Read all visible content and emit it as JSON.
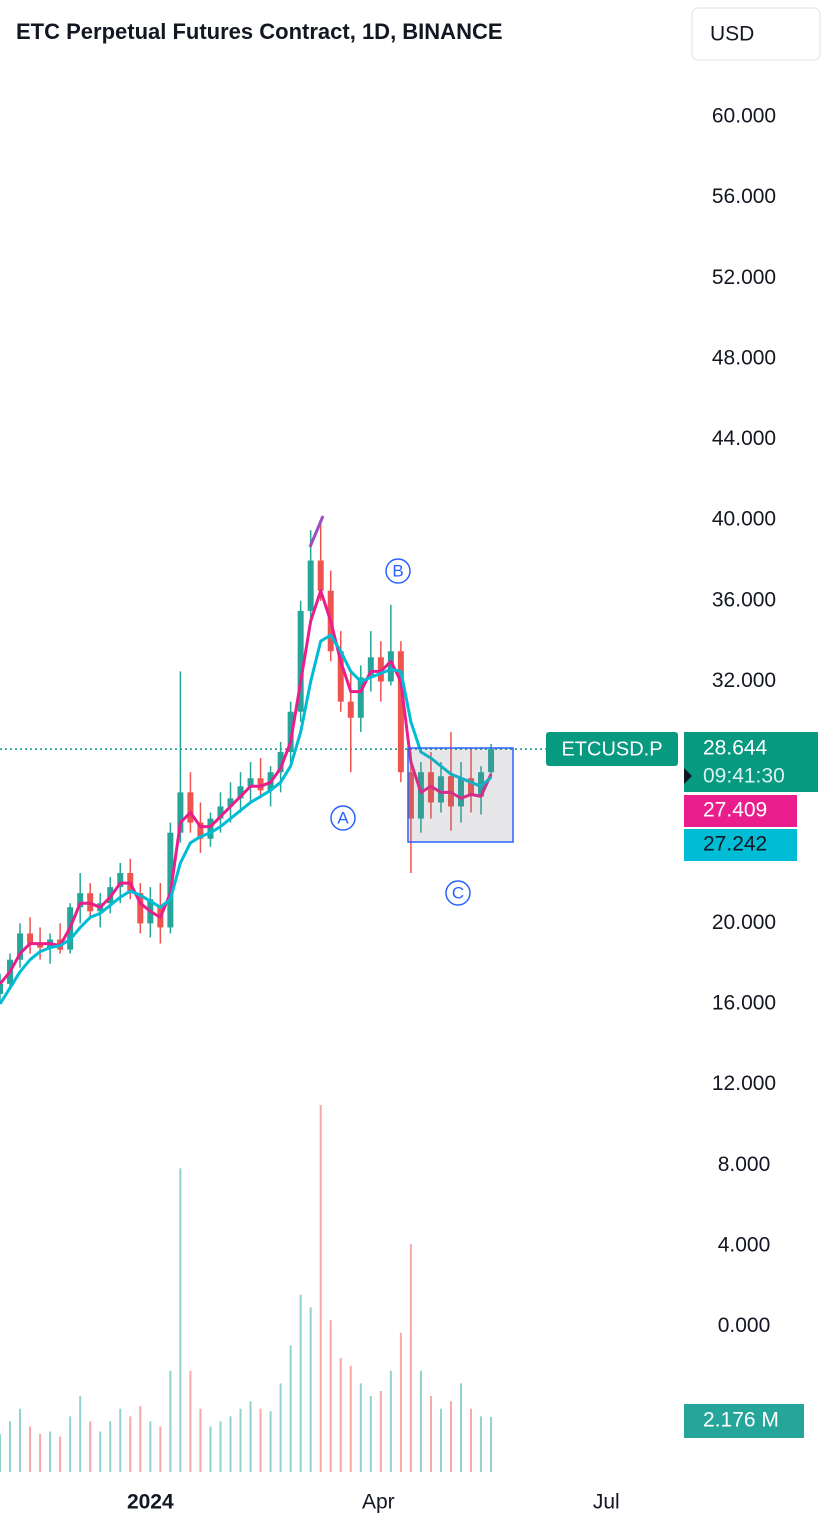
{
  "chart_data": {
    "type": "candlestick",
    "title": "ETC Perpetual Futures Contract, 1D, BINANCE",
    "currency": "USD",
    "symbol": "ETCUSD.P",
    "countdown": "09:41:30",
    "annotations": [
      "A",
      "B",
      "C"
    ],
    "up_color": "#26a69a",
    "down_color": "#ef5350",
    "x": [
      -60,
      -56,
      -52,
      -48,
      -44,
      -40,
      -36,
      -32,
      -28,
      -24,
      -20,
      -16,
      -12,
      -8,
      -4,
      0,
      4,
      8,
      12,
      16,
      20,
      24,
      28,
      32,
      36,
      40,
      44,
      48,
      52,
      56,
      60,
      64,
      68,
      72,
      76,
      80,
      84,
      88,
      92,
      96,
      100,
      104,
      108,
      112,
      116,
      120,
      124,
      128,
      132,
      136
    ],
    "open": [
      16.5,
      17,
      18.2,
      19.5,
      19,
      18.8,
      19.2,
      18.7,
      20.8,
      21.5,
      20.6,
      21,
      21.8,
      22.5,
      21.5,
      20,
      20.8,
      19.8,
      24.5,
      26.5,
      25,
      24.2,
      25.2,
      25.8,
      26.2,
      26.8,
      27.2,
      26.6,
      27.5,
      28.5,
      30.5,
      35.5,
      38,
      36.5,
      33.5,
      31,
      30.2,
      32.2,
      33.2,
      32,
      33.5,
      27.5,
      25.2,
      27.5,
      26,
      27.3,
      25.8,
      27.2,
      26.3,
      27.5
    ],
    "high": [
      17.5,
      18.5,
      20,
      20.3,
      19.8,
      19.5,
      20,
      21,
      22.5,
      22,
      21.5,
      22.3,
      23,
      23.2,
      22,
      21.8,
      22,
      25,
      32.5,
      27.5,
      26,
      25.5,
      26.5,
      27,
      27.5,
      28,
      28.2,
      27.8,
      29,
      31,
      36,
      39.5,
      40,
      37.5,
      34.5,
      32.5,
      32.8,
      34.5,
      34,
      35.8,
      34,
      28.5,
      28,
      28.5,
      28,
      29.5,
      28,
      28.6,
      27.8,
      28.9
    ],
    "low": [
      16,
      16.8,
      17.8,
      18.5,
      18.2,
      18,
      18.5,
      18.5,
      20,
      20.2,
      19.8,
      20.5,
      21,
      21.2,
      19.5,
      19.3,
      19,
      19.5,
      24,
      24.5,
      23.5,
      23.8,
      24.5,
      25,
      25.5,
      26,
      26.2,
      25.8,
      26.5,
      27.8,
      30,
      35,
      36,
      33,
      30.5,
      27.5,
      29.5,
      31.5,
      31,
      31.8,
      27,
      22.5,
      24.5,
      25.2,
      25.5,
      24.6,
      25,
      25.5,
      25.4,
      27.2
    ],
    "close": [
      17,
      18.2,
      19.5,
      19,
      18.8,
      19.2,
      18.7,
      20.8,
      21.5,
      20.6,
      21,
      21.8,
      22.5,
      21.5,
      20,
      21.2,
      19.8,
      24.5,
      26.5,
      25,
      24.2,
      25.2,
      25.8,
      26.2,
      26.8,
      27.2,
      26.6,
      27.5,
      28.5,
      30.5,
      35.5,
      38,
      36.5,
      33.5,
      31,
      30.2,
      32.2,
      33.2,
      32,
      33.5,
      27.5,
      25.2,
      27.5,
      26,
      27.3,
      25.8,
      27.2,
      26.3,
      27.5,
      28.644
    ],
    "series": [
      {
        "color": "#e91e8c",
        "values": [
          17,
          17.6,
          18.5,
          19,
          19,
          19,
          18.9,
          19.8,
          21,
          21,
          20.8,
          21.3,
          22,
          22,
          21,
          20.6,
          20.3,
          21.5,
          25,
          25.5,
          24.8,
          24.8,
          25.3,
          25.8,
          26.3,
          26.8,
          26.8,
          27,
          27.7,
          29,
          32,
          35,
          36.5,
          35,
          33,
          31.5,
          31.5,
          32.5,
          32.5,
          33,
          32,
          28,
          26.5,
          26.8,
          26.5,
          26.5,
          26.2,
          26.4,
          26.3,
          27.409
        ]
      },
      {
        "color": "#00bcd4",
        "values": [
          16,
          16.8,
          17.6,
          18.2,
          18.6,
          18.8,
          18.9,
          19.2,
          19.8,
          20.3,
          20.5,
          20.9,
          21.3,
          21.6,
          21.4,
          21.1,
          20.8,
          21.2,
          23,
          24,
          24.3,
          24.5,
          24.8,
          25.2,
          25.6,
          26,
          26.3,
          26.6,
          27,
          27.8,
          29.5,
          32,
          34,
          34.3,
          33.5,
          32.5,
          32,
          32.2,
          32.4,
          32.6,
          32.5,
          30,
          28.5,
          28.2,
          27.8,
          27.4,
          27.2,
          27,
          26.8,
          27.242
        ]
      }
    ],
    "volume": {
      "values": [
        1.5,
        2,
        2.5,
        1.8,
        1.5,
        1.6,
        1.4,
        2.2,
        3,
        2,
        1.6,
        2,
        2.5,
        2.2,
        2.6,
        2,
        1.8,
        4,
        12,
        4,
        2.5,
        1.8,
        2,
        2.2,
        2.5,
        2.8,
        2.5,
        2.4,
        3.5,
        5,
        7,
        6.5,
        14.5,
        6,
        4.5,
        4.2,
        3.5,
        3,
        3.2,
        4,
        5.5,
        9,
        4,
        3,
        2.5,
        2.8,
        3.5,
        2.5,
        2.2,
        2.176
      ],
      "value_labels": [
        null,
        null,
        null,
        null,
        null,
        null,
        null,
        null,
        null,
        null,
        null,
        null,
        null,
        null,
        null,
        null,
        null,
        null,
        null,
        null,
        null,
        null,
        null,
        null,
        null,
        null,
        null,
        null,
        null,
        null,
        null,
        null,
        null,
        null,
        null,
        null,
        null,
        null,
        null,
        null,
        null,
        null,
        null,
        null,
        null,
        null,
        null,
        null,
        null,
        "2.176 M"
      ]
    },
    "xlim": [
      -60,
      215
    ],
    "xticks": [
      {
        "value": 0,
        "label": "2024"
      },
      {
        "value": 91,
        "label": "Apr"
      },
      {
        "value": 182,
        "label": "Jul"
      }
    ],
    "ylim": [
      -8.5,
      65.8
    ],
    "yticks": [
      {
        "value": 60,
        "label": "60.000"
      },
      {
        "value": 56,
        "label": "56.000"
      },
      {
        "value": 52,
        "label": "52.000"
      },
      {
        "value": 48,
        "label": "48.000"
      },
      {
        "value": 44,
        "label": "44.000"
      },
      {
        "value": 40,
        "label": "40.000"
      },
      {
        "value": 36,
        "label": "36.000"
      },
      {
        "value": 32,
        "label": "32.000"
      },
      {
        "value": 20,
        "label": "20.000"
      },
      {
        "value": 16,
        "label": "16.000"
      },
      {
        "value": 12,
        "label": "12.000"
      },
      {
        "value": 8,
        "label": "8.000"
      },
      {
        "value": 4,
        "label": "4.000"
      },
      {
        "value": 0,
        "label": "0.000"
      }
    ]
  }
}
